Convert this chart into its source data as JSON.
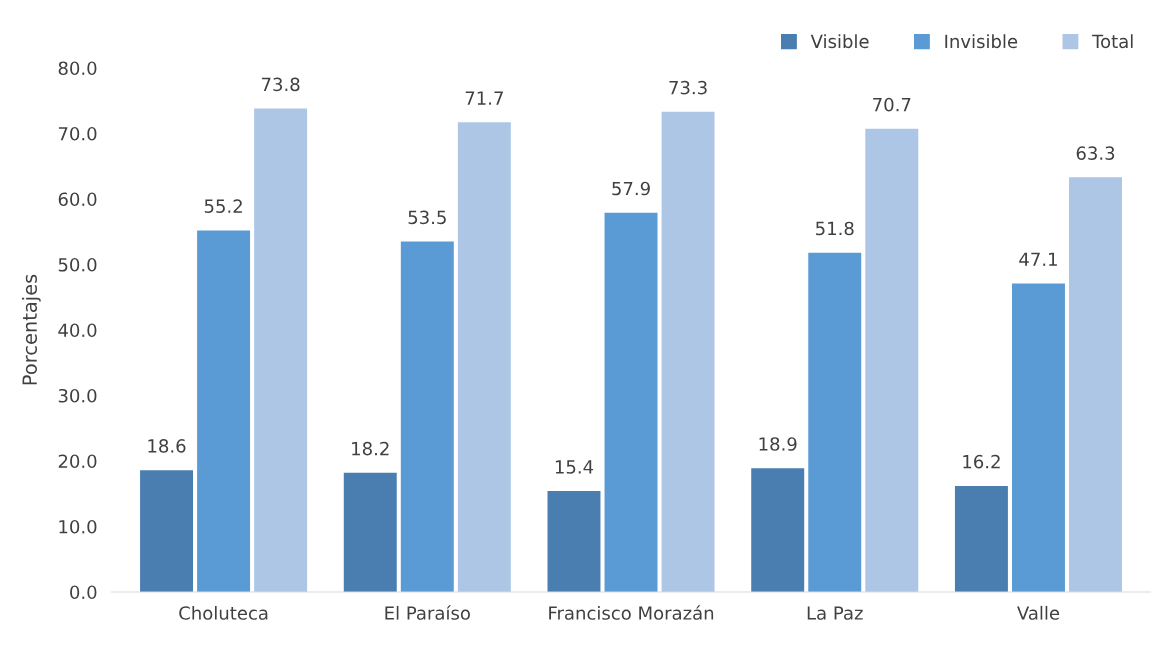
{
  "chart_data": {
    "type": "bar",
    "ylabel": "Porcentajes",
    "categories": [
      "Choluteca",
      "El Paraíso",
      "Francisco Morazán",
      "La Paz",
      "Valle"
    ],
    "series": [
      {
        "name": "Visible",
        "color": "#4a7eb0",
        "values": [
          18.6,
          18.2,
          15.4,
          18.9,
          16.2
        ]
      },
      {
        "name": "Invisible",
        "color": "#5b9bd5",
        "values": [
          55.2,
          53.5,
          57.9,
          51.8,
          47.1
        ]
      },
      {
        "name": "Total",
        "color": "#adc6e6",
        "values": [
          73.8,
          71.7,
          73.3,
          70.7,
          63.3
        ]
      }
    ],
    "ylim": [
      0,
      80
    ],
    "yticks": [
      {
        "value": 0,
        "label": "0.0"
      },
      {
        "value": 10,
        "label": "10.0"
      },
      {
        "value": 20,
        "label": "20.0"
      },
      {
        "value": 30,
        "label": "30.0"
      },
      {
        "value": 40,
        "label": "40.0"
      },
      {
        "value": 50,
        "label": "50.0"
      },
      {
        "value": 60,
        "label": "60.0"
      },
      {
        "value": 70,
        "label": "70.0"
      },
      {
        "value": 80,
        "label": "80.0"
      }
    ],
    "data_labels": true,
    "grid": false,
    "legend": "top right"
  }
}
